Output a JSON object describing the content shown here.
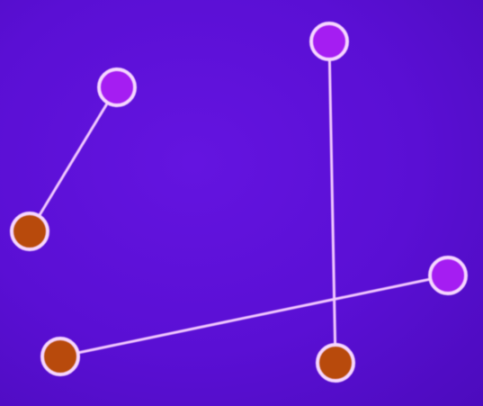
{
  "colors": {
    "background": "#5b0fd6",
    "line": "#f2c8ff",
    "node_outline": "#f6d6ff",
    "node_purple_fill": "#a51df2",
    "node_orange_fill": "#b84a0c"
  },
  "nodes": [
    {
      "id": "p1",
      "kind": "purple"
    },
    {
      "id": "o1",
      "kind": "orange"
    },
    {
      "id": "p2",
      "kind": "purple"
    },
    {
      "id": "o2",
      "kind": "orange"
    },
    {
      "id": "p3",
      "kind": "purple"
    },
    {
      "id": "o3",
      "kind": "orange"
    }
  ],
  "edges": [
    {
      "from": "p1",
      "to": "o1"
    },
    {
      "from": "p2",
      "to": "o2"
    },
    {
      "from": "p3",
      "to": "o3"
    }
  ]
}
